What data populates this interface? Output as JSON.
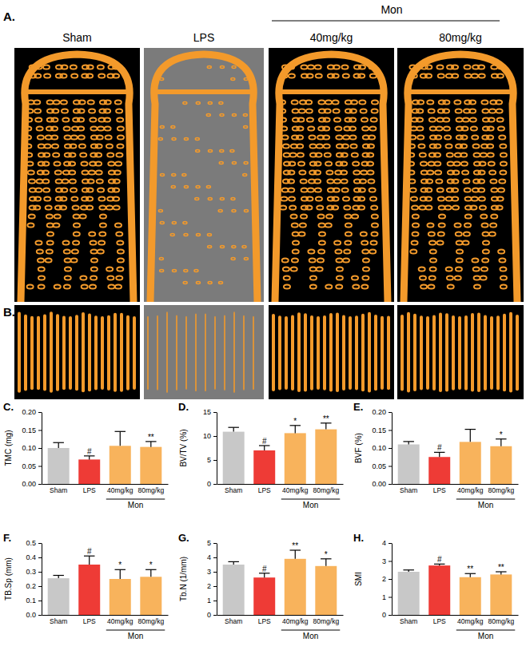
{
  "images": {
    "panels": [
      "A.",
      "B."
    ],
    "header": "Mon",
    "groups": [
      "Sham",
      "LPS",
      "40mg/kg",
      "80mg/kg"
    ]
  },
  "chart_data": [
    {
      "type": "bar",
      "title": "C.",
      "ylabel": "TMC (mg)",
      "group_label": "Mon",
      "categories": [
        "Sham",
        "LPS",
        "40mg/kg",
        "80mg/kg"
      ],
      "values": [
        0.1,
        0.068,
        0.106,
        0.103
      ],
      "errors": [
        0.015,
        0.01,
        0.04,
        0.015
      ],
      "annotations": [
        null,
        "#",
        null,
        "**"
      ],
      "colors": [
        "#c8c8c8",
        "#ee3b36",
        "#f8b35c",
        "#f8b35c"
      ],
      "ylim": [
        0,
        0.2
      ],
      "yticks": [
        {
          "value": 0,
          "label": "0.00"
        },
        0.05,
        {
          "value": 0.1,
          "label": "0.10"
        },
        0.15,
        {
          "value": 0.2,
          "label": "0.20"
        }
      ]
    },
    {
      "type": "bar",
      "title": "D.",
      "ylabel": "BV/TV (%)",
      "group_label": "Mon",
      "categories": [
        "Sham",
        "LPS",
        "40mg/kg",
        "80mg/kg"
      ],
      "values": [
        10.9,
        7.0,
        10.6,
        11.4
      ],
      "errors": [
        0.9,
        1.0,
        1.6,
        1.3
      ],
      "annotations": [
        null,
        "#",
        "*",
        "**"
      ],
      "colors": [
        "#c8c8c8",
        "#ee3b36",
        "#f8b35c",
        "#f8b35c"
      ],
      "ylim": [
        0,
        15
      ],
      "yticks": [
        0,
        5,
        10,
        15
      ]
    },
    {
      "type": "bar",
      "title": "E.",
      "ylabel": "BVF (%)",
      "group_label": "Mon",
      "categories": [
        "Sham",
        "LPS",
        "40mg/kg",
        "80mg/kg"
      ],
      "values": [
        0.11,
        0.075,
        0.117,
        0.105
      ],
      "errors": [
        0.008,
        0.013,
        0.035,
        0.02
      ],
      "annotations": [
        null,
        "#",
        null,
        "*"
      ],
      "colors": [
        "#c8c8c8",
        "#ee3b36",
        "#f8b35c",
        "#f8b35c"
      ],
      "ylim": [
        0,
        0.2
      ],
      "yticks": [
        {
          "value": 0,
          "label": "0.00"
        },
        0.05,
        {
          "value": 0.1,
          "label": "0.10"
        },
        0.15,
        {
          "value": 0.2,
          "label": "0.20"
        }
      ]
    },
    {
      "type": "bar",
      "title": "F.",
      "ylabel": "TB.Sp (mm)",
      "group_label": "Mon",
      "categories": [
        "Sham",
        "LPS",
        "40mg/kg",
        "80mg/kg"
      ],
      "values": [
        0.255,
        0.35,
        0.25,
        0.265
      ],
      "errors": [
        0.02,
        0.06,
        0.065,
        0.05
      ],
      "annotations": [
        null,
        "#",
        "*",
        "*"
      ],
      "colors": [
        "#c8c8c8",
        "#ee3b36",
        "#f8b35c",
        "#f8b35c"
      ],
      "ylim": [
        0,
        0.5
      ],
      "yticks": [
        {
          "value": 0,
          "label": "0.0"
        },
        0.1,
        0.2,
        0.3,
        0.4,
        0.5
      ]
    },
    {
      "type": "bar",
      "title": "G.",
      "ylabel": "Tb.N (1/mm)",
      "group_label": "Mon",
      "categories": [
        "Sham",
        "LPS",
        "40mg/kg",
        "80mg/kg"
      ],
      "values": [
        3.5,
        2.6,
        3.9,
        3.4
      ],
      "errors": [
        0.2,
        0.3,
        0.6,
        0.5
      ],
      "annotations": [
        null,
        "#",
        "**",
        "*"
      ],
      "colors": [
        "#c8c8c8",
        "#ee3b36",
        "#f8b35c",
        "#f8b35c"
      ],
      "ylim": [
        0,
        5
      ],
      "yticks": [
        0,
        1,
        2,
        3,
        4,
        5
      ]
    },
    {
      "type": "bar",
      "title": "H.",
      "ylabel": "SMI",
      "group_label": "Mon",
      "categories": [
        "Sham",
        "LPS",
        "40mg/kg",
        "80mg/kg"
      ],
      "values": [
        2.4,
        2.75,
        2.1,
        2.25
      ],
      "errors": [
        0.1,
        0.08,
        0.2,
        0.15
      ],
      "annotations": [
        null,
        "#",
        "**",
        "**"
      ],
      "colors": [
        "#c8c8c8",
        "#ee3b36",
        "#f8b35c",
        "#f8b35c"
      ],
      "ylim": [
        0,
        4
      ],
      "yticks": [
        0,
        1,
        2,
        3,
        4
      ]
    }
  ]
}
